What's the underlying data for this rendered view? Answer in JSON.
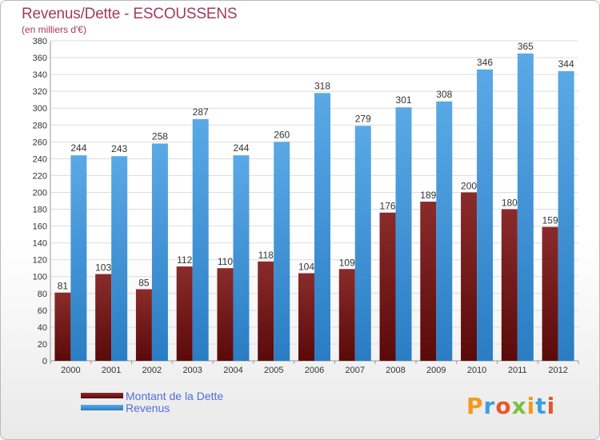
{
  "title": "Revenus/Dette - ESCOUSSENS",
  "subtitle": "(en milliers d'€)",
  "logo_text": "Proxiti",
  "colors": {
    "dette": "#6b1010",
    "dette_light": "#8a2b2b",
    "revenus": "#2f86cf",
    "revenus_light": "#5aa9e6",
    "title": "#a33a5c",
    "legend_text": "#4f6ee0",
    "grid": "#dddddd"
  },
  "legend": [
    {
      "label": "Montant de la Dette",
      "color": "#6b1010"
    },
    {
      "label": "Revenus",
      "color": "#4a9fe0"
    }
  ],
  "chart_data": {
    "type": "bar",
    "categories": [
      "2000",
      "2001",
      "2002",
      "2003",
      "2004",
      "2005",
      "2006",
      "2007",
      "2008",
      "2009",
      "2010",
      "2011",
      "2012"
    ],
    "series": [
      {
        "name": "Montant de la Dette",
        "values": [
          81,
          103,
          85,
          112,
          110,
          118,
          104,
          109,
          176,
          189,
          200,
          180,
          159
        ]
      },
      {
        "name": "Revenus",
        "values": [
          244,
          243,
          258,
          287,
          244,
          260,
          318,
          279,
          301,
          308,
          346,
          365,
          344
        ]
      }
    ],
    "yticks": [
      0,
      20,
      40,
      60,
      80,
      100,
      120,
      140,
      160,
      180,
      200,
      220,
      240,
      260,
      280,
      300,
      320,
      340,
      360,
      380
    ],
    "ylim": [
      0,
      380
    ],
    "grid": true,
    "legend_position": "bottom-left"
  }
}
